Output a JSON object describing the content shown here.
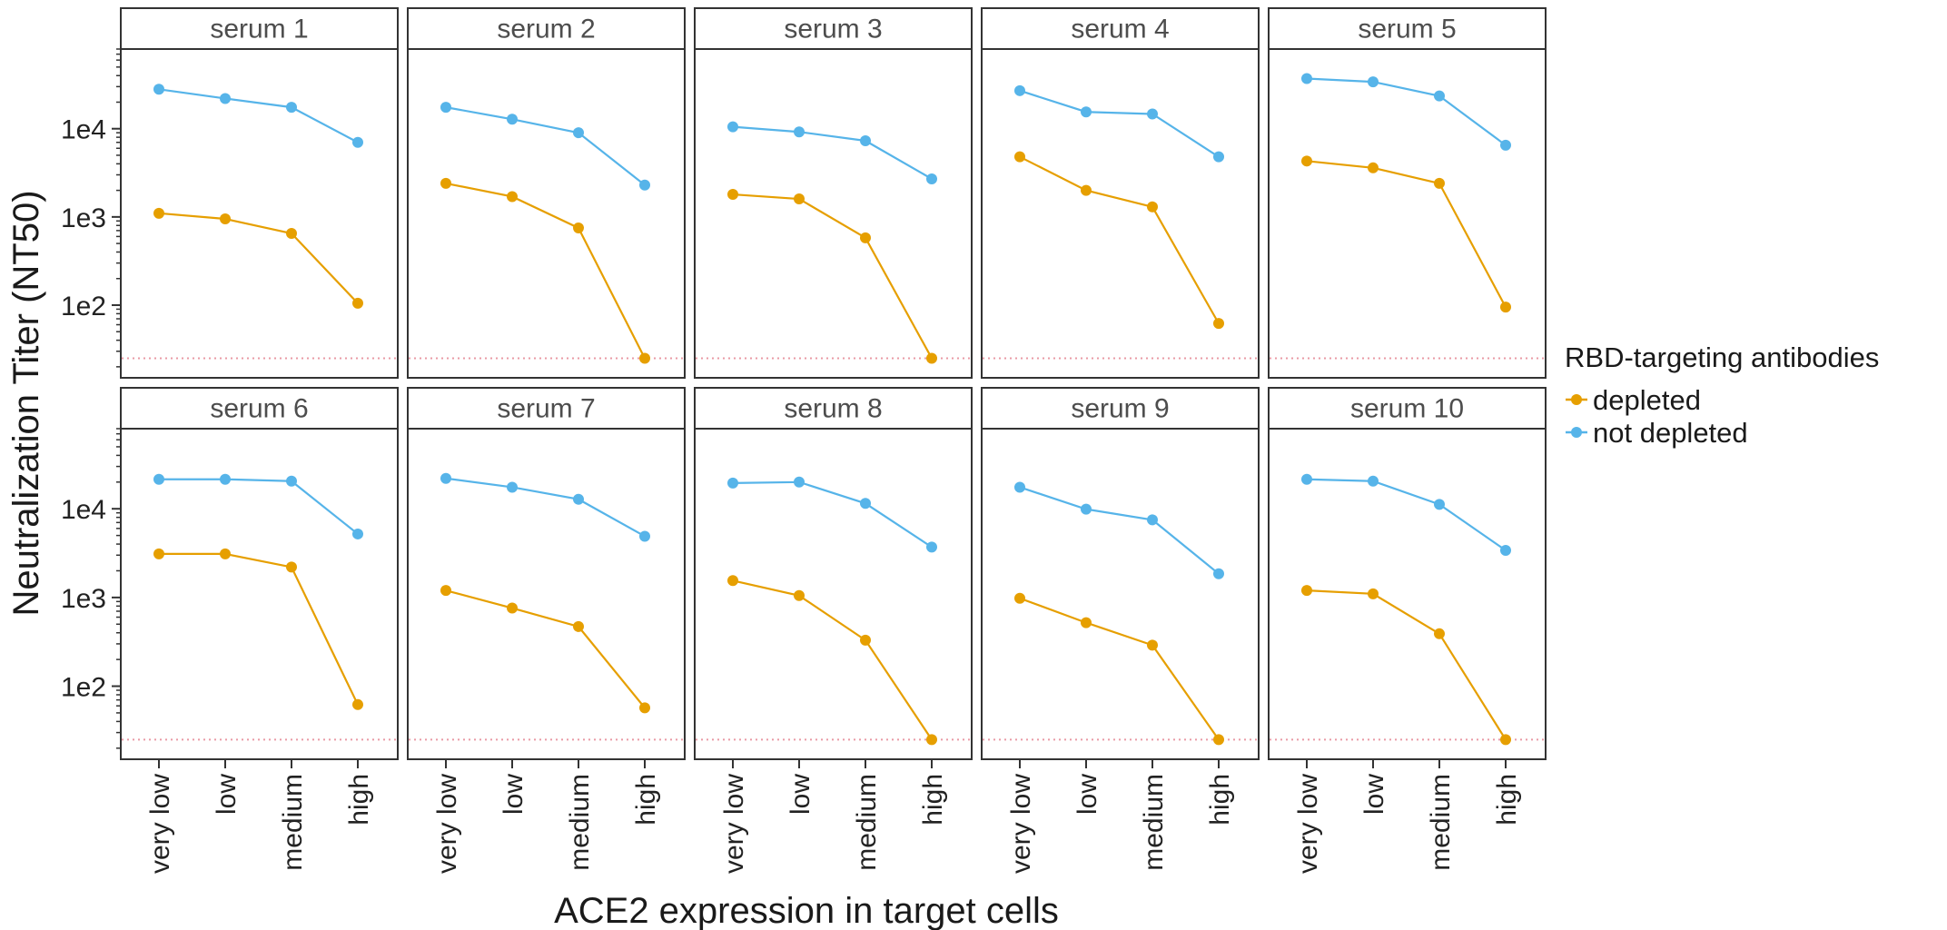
{
  "chart_data": {
    "type": "line",
    "facet_titles": [
      "serum 1",
      "serum 2",
      "serum 3",
      "serum 4",
      "serum 5",
      "serum 6",
      "serum 7",
      "serum 8",
      "serum 9",
      "serum 10"
    ],
    "categories": [
      "very low",
      "low",
      "medium",
      "high"
    ],
    "xlabel": "ACE2 expression in target cells",
    "ylabel": "Neutralization Titer (NT50)",
    "y_scale": "log10",
    "ylim": [
      15,
      80000
    ],
    "y_ticks": [
      100,
      1000,
      10000
    ],
    "y_tick_labels": [
      "1e2",
      "1e3",
      "1e4"
    ],
    "reference_line": {
      "value": 25,
      "style": "dotted",
      "color": "#e99aa5"
    },
    "legend": {
      "title": "RBD-targeting antibodies",
      "position": "right",
      "entries": [
        {
          "name": "depleted",
          "color": "#e69f00"
        },
        {
          "name": "not depleted",
          "color": "#56b4e9"
        }
      ]
    },
    "grid": false,
    "panels": [
      {
        "depleted": [
          1100,
          950,
          650,
          105
        ],
        "not_depleted": [
          28000,
          22000,
          17500,
          7000
        ]
      },
      {
        "depleted": [
          2400,
          1700,
          750,
          25
        ],
        "not_depleted": [
          17500,
          12800,
          9000,
          2300
        ]
      },
      {
        "depleted": [
          1800,
          1600,
          580,
          25
        ],
        "not_depleted": [
          10500,
          9200,
          7300,
          2700
        ]
      },
      {
        "depleted": [
          4800,
          2000,
          1300,
          62
        ],
        "not_depleted": [
          27000,
          15500,
          14700,
          4800
        ]
      },
      {
        "depleted": [
          4300,
          3600,
          2400,
          95
        ],
        "not_depleted": [
          37000,
          34000,
          23500,
          6500
        ]
      },
      {
        "depleted": [
          3100,
          3100,
          2200,
          62
        ],
        "not_depleted": [
          21500,
          21500,
          20500,
          5200
        ]
      },
      {
        "depleted": [
          1200,
          760,
          470,
          57
        ],
        "not_depleted": [
          22000,
          17500,
          12800,
          4900
        ]
      },
      {
        "depleted": [
          1550,
          1050,
          330,
          25
        ],
        "not_depleted": [
          19500,
          20000,
          11500,
          3700
        ]
      },
      {
        "depleted": [
          980,
          520,
          290,
          25
        ],
        "not_depleted": [
          17500,
          9900,
          7500,
          1850
        ]
      },
      {
        "depleted": [
          1200,
          1100,
          390,
          25
        ],
        "not_depleted": [
          21500,
          20500,
          11200,
          3400
        ]
      }
    ]
  }
}
